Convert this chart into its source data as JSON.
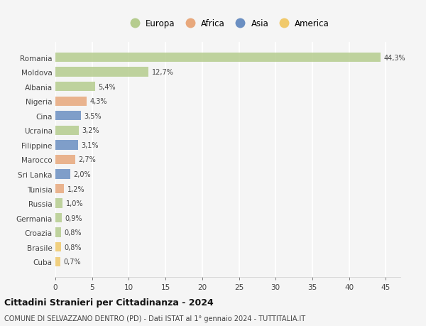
{
  "countries": [
    "Romania",
    "Moldova",
    "Albania",
    "Nigeria",
    "Cina",
    "Ucraina",
    "Filippine",
    "Marocco",
    "Sri Lanka",
    "Tunisia",
    "Russia",
    "Germania",
    "Croazia",
    "Brasile",
    "Cuba"
  ],
  "values": [
    44.3,
    12.7,
    5.4,
    4.3,
    3.5,
    3.2,
    3.1,
    2.7,
    2.0,
    1.2,
    1.0,
    0.9,
    0.8,
    0.8,
    0.7
  ],
  "labels": [
    "44,3%",
    "12,7%",
    "5,4%",
    "4,3%",
    "3,5%",
    "3,2%",
    "3,1%",
    "2,7%",
    "2,0%",
    "1,2%",
    "1,0%",
    "0,9%",
    "0,8%",
    "0,8%",
    "0,7%"
  ],
  "colors": [
    "#b5cc8e",
    "#b5cc8e",
    "#b5cc8e",
    "#e8a87c",
    "#6b8fc2",
    "#b5cc8e",
    "#6b8fc2",
    "#e8a87c",
    "#6b8fc2",
    "#e8a87c",
    "#b5cc8e",
    "#b5cc8e",
    "#b5cc8e",
    "#f0c96b",
    "#f0c96b"
  ],
  "legend_labels": [
    "Europa",
    "Africa",
    "Asia",
    "America"
  ],
  "legend_colors": [
    "#b5cc8e",
    "#e8a87c",
    "#6b8fc2",
    "#f0c96b"
  ],
  "title": "Cittadini Stranieri per Cittadinanza - 2024",
  "subtitle": "COMUNE DI SELVAZZANO DENTRO (PD) - Dati ISTAT al 1° gennaio 2024 - TUTTITALIA.IT",
  "xlim": [
    0,
    47
  ],
  "xticks": [
    0,
    5,
    10,
    15,
    20,
    25,
    30,
    35,
    40,
    45
  ],
  "background_color": "#f5f5f5",
  "grid_color": "#ffffff",
  "bar_height": 0.65
}
